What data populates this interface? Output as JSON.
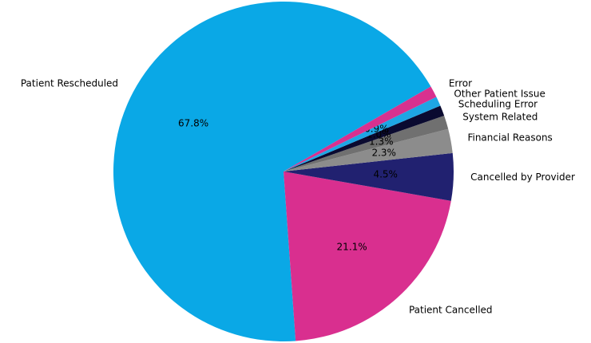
{
  "chart_data": {
    "type": "pie",
    "categories": [
      "Patient Rescheduled",
      "Patient Cancelled",
      "Cancelled by Provider",
      "Financial Reasons",
      "System Related",
      "Scheduling Error",
      "Other Patient Issue",
      "Error"
    ],
    "values": [
      67.8,
      21.1,
      4.5,
      2.3,
      1.3,
      1.0,
      0.9,
      1.1
    ],
    "value_labels": [
      "67.8%",
      "21.1%",
      "4.5%",
      "2.3%",
      "1.3%",
      "1.0%",
      "0.9%",
      null
    ],
    "colors": [
      "#0aa8e6",
      "#d92f8f",
      "#212170",
      "#8c8c8c",
      "#707070",
      "#0a0a30",
      "#1ea6e4",
      "#d8318f"
    ],
    "startangle": 30
  }
}
